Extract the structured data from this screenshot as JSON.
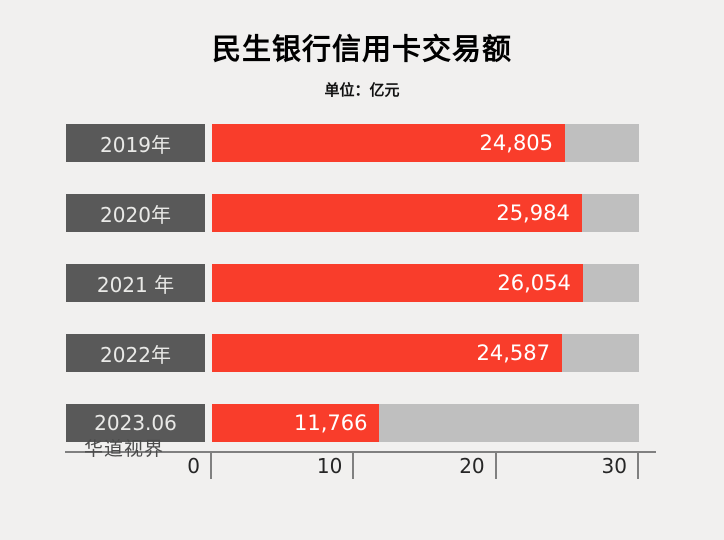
{
  "page": {
    "background": "#f1f0ef"
  },
  "header": {
    "title": "民生银行信用卡交易额",
    "subtitle": "单位：亿元"
  },
  "watermark": "华道视界",
  "colors": {
    "bar_fill": "#f93d2b",
    "bar_track": "#bfbfbf",
    "category_box": "#595959",
    "category_text": "#e9e9e7",
    "value_text": "#ffffff",
    "axis_line": "#808080",
    "background": "#f1f0ef"
  },
  "chart_data": {
    "type": "bar",
    "orientation": "horizontal",
    "title": "民生银行信用卡交易额",
    "unit": "单位：亿元",
    "categories": [
      "2019年",
      "2020年",
      "2021 年",
      "2022年",
      "2023.06"
    ],
    "values": [
      24805,
      25984,
      26054,
      24587,
      11766
    ],
    "value_labels": [
      "24,805",
      "25,984",
      "26,054",
      "24,587",
      "11,766"
    ],
    "xlabel": "",
    "ylabel": "",
    "axis": {
      "tick_labels": [
        "0",
        "10",
        "20",
        "30"
      ],
      "tick_values_in_thousands": [
        0,
        10,
        20,
        30
      ],
      "range_in_thousands": [
        0,
        30
      ]
    },
    "grid": false,
    "legend_position": "none"
  }
}
